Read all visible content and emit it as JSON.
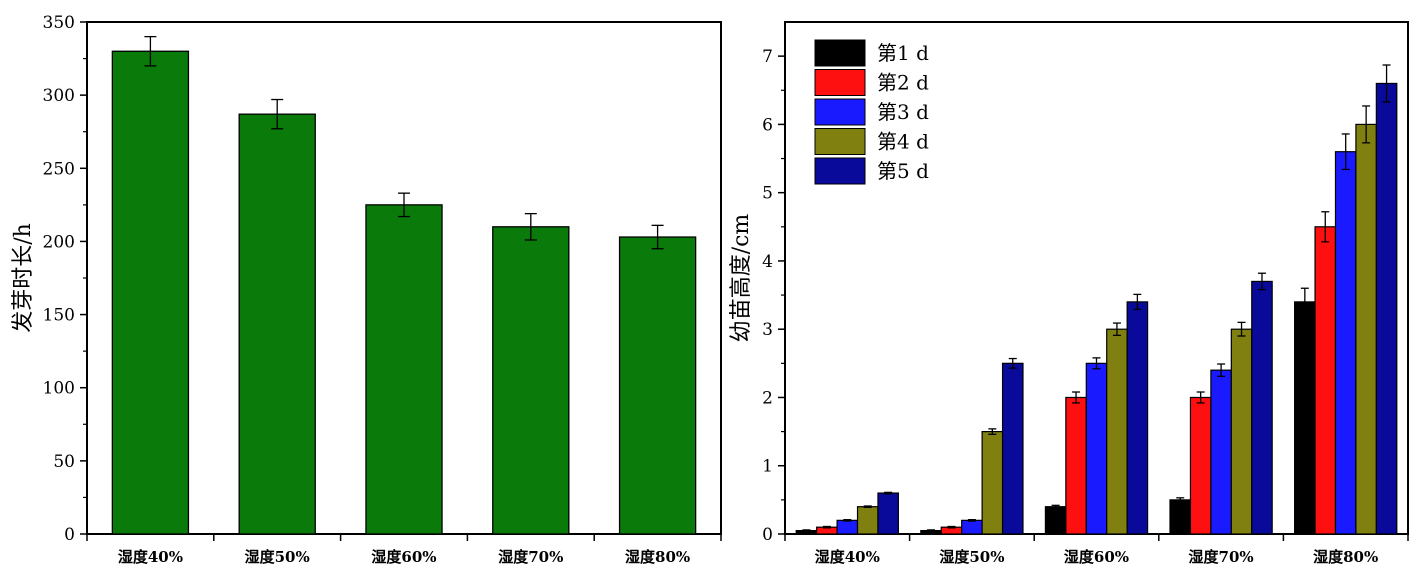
{
  "chart_data": [
    {
      "type": "bar",
      "categories": [
        "湿度40%",
        "湿度50%",
        "湿度60%",
        "湿度70%",
        "湿度80%"
      ],
      "values": [
        330,
        287,
        225,
        210,
        203
      ],
      "errors": [
        10,
        10,
        8,
        9,
        8
      ],
      "title": "",
      "xlabel": "",
      "ylabel": "发芽时长/h",
      "ylim": [
        0,
        350
      ],
      "yticks": [
        0,
        50,
        100,
        150,
        200,
        250,
        300,
        350
      ],
      "bar_color": "#0a7a0a",
      "grid": false
    },
    {
      "type": "bar",
      "categories": [
        "湿度40%",
        "湿度50%",
        "湿度60%",
        "湿度70%",
        "湿度80%"
      ],
      "series": [
        {
          "name": "第1 d",
          "color": "#000000",
          "values": [
            0.05,
            0.05,
            0.4,
            0.5,
            3.4
          ],
          "errors": [
            0.01,
            0.01,
            0.02,
            0.03,
            0.2
          ]
        },
        {
          "name": "第2 d",
          "color": "#ff1010",
          "values": [
            0.1,
            0.1,
            2.0,
            2.0,
            4.5
          ],
          "errors": [
            0.01,
            0.01,
            0.08,
            0.08,
            0.22
          ]
        },
        {
          "name": "第3 d",
          "color": "#1a1aff",
          "values": [
            0.2,
            0.2,
            2.5,
            2.4,
            5.6
          ],
          "errors": [
            0.01,
            0.01,
            0.08,
            0.09,
            0.26
          ]
        },
        {
          "name": "第4 d",
          "color": "#808010",
          "values": [
            0.4,
            1.5,
            3.0,
            3.0,
            6.0
          ],
          "errors": [
            0.01,
            0.04,
            0.09,
            0.1,
            0.27
          ]
        },
        {
          "name": "第5 d",
          "color": "#0a0a9a",
          "values": [
            0.6,
            2.5,
            3.4,
            3.7,
            6.6
          ],
          "errors": [
            0.01,
            0.07,
            0.11,
            0.12,
            0.27
          ]
        }
      ],
      "title": "",
      "xlabel": "",
      "ylabel": "幼苗高度/cm",
      "ylim": [
        0,
        7.5
      ],
      "yticks": [
        0,
        1,
        2,
        3,
        4,
        5,
        6,
        7
      ],
      "legend_position": "top-left",
      "grid": false
    }
  ]
}
